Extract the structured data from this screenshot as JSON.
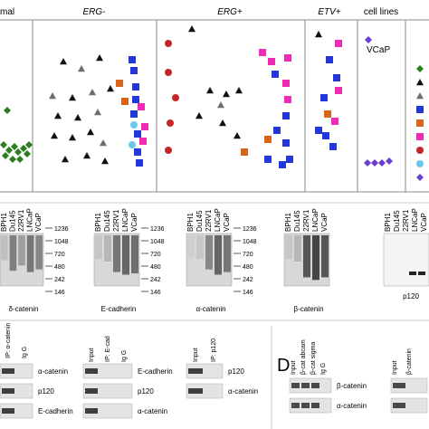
{
  "scatter": {
    "groups": [
      {
        "label": "mal",
        "italic": false
      },
      {
        "label": "ERG-",
        "italic": true
      },
      {
        "label": "ERG+",
        "italic": true
      },
      {
        "label": "ETV+",
        "italic": true
      },
      {
        "label": "cell lines",
        "italic": false
      }
    ],
    "vcap_label": "VCaP",
    "colors": {
      "green": "#2e7d1f",
      "black": "#111111",
      "gray": "#6e6e6e",
      "blue": "#2337d8",
      "pink": "#ee2bb5",
      "orange": "#d9661a",
      "red": "#c4262a",
      "cyan": "#6cc7ec",
      "purple": "#6a3fd2"
    },
    "legend_markers": [
      "green-diamond",
      "black-triangle",
      "gray-triangle",
      "blue-square",
      "orange-square",
      "pink-square",
      "red-circle",
      "cyan-circle",
      "purple-diamond"
    ]
  },
  "western_blots": [
    {
      "lanes": [
        "BPH1",
        "Du145",
        "22RV1",
        "LNCaP",
        "VCaP"
      ],
      "caption": "δ-catenin",
      "markers": [
        "1236",
        "1048",
        "720",
        "480",
        "242",
        "146"
      ]
    },
    {
      "lanes": [
        "BPH1",
        "Du145",
        "22RV1",
        "LNCaP",
        "VCaP"
      ],
      "caption": "E-cadherin",
      "markers": [
        "1236",
        "1048",
        "720",
        "480",
        "242",
        "146"
      ]
    },
    {
      "lanes": [
        "BPH1",
        "Du145",
        "22RV1",
        "LNCaP",
        "VCaP"
      ],
      "caption": "α-catenin",
      "markers": [
        "1236",
        "1048",
        "720",
        "480",
        "242",
        "146"
      ]
    },
    {
      "lanes": [
        "BPH1",
        "Du145",
        "22RV1",
        "LNCaP",
        "VCaP"
      ],
      "caption": "β-catenin",
      "markers": []
    },
    {
      "lanes": [
        "BPH1",
        "Du145",
        "22RV1",
        "LNCaP",
        "VCaP"
      ],
      "caption": "p120",
      "markers": []
    }
  ],
  "ip_panels": [
    {
      "lanes": [
        "IP: α-catenin",
        "Ig G"
      ],
      "rows": [
        "α-catenin",
        "p120",
        "E-cadherin"
      ]
    },
    {
      "lanes": [
        "Input",
        "IP: E-cad",
        "Ig G"
      ],
      "rows": [
        "E-cadherin",
        "p120",
        "α-catenin"
      ]
    },
    {
      "lanes": [
        "Input",
        "IP: p120"
      ],
      "rows": [
        "p120",
        "α-catenin"
      ]
    }
  ],
  "panel_d": {
    "letter": "D",
    "blot1": {
      "lanes": [
        "Input",
        "β-cat abcam",
        "β-cat sigma",
        "Ig G"
      ],
      "rows": [
        "β-catenin",
        "α-catenin"
      ]
    },
    "blot2": {
      "lanes": [
        "Input",
        "β-catenin"
      ]
    }
  }
}
